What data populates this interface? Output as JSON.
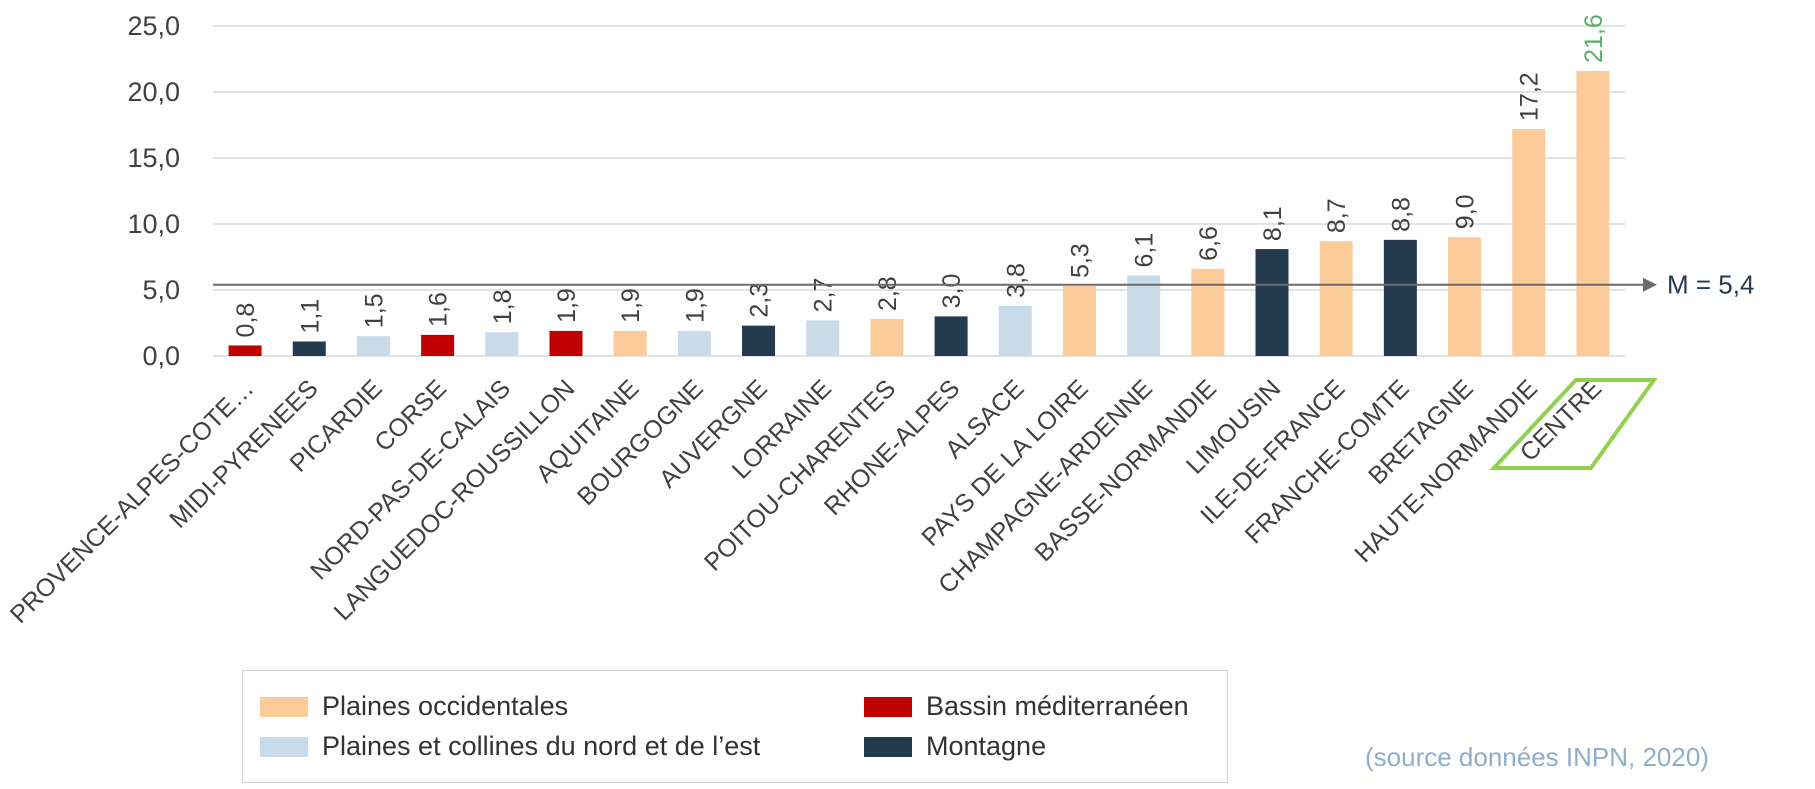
{
  "chart_data": {
    "type": "bar",
    "categories": [
      "PROVENCE-ALPES-COTE…",
      "MIDI-PYRENEES",
      "PICARDIE",
      "CORSE",
      "NORD-PAS-DE-CALAIS",
      "LANGUEDOC-ROUSSILLON",
      "AQUITAINE",
      "BOURGOGNE",
      "AUVERGNE",
      "LORRAINE",
      "POITOU-CHARENTES",
      "RHONE-ALPES",
      "ALSACE",
      "PAYS DE LA LOIRE",
      "CHAMPAGNE-ARDENNE",
      "BASSE-NORMANDIE",
      "LIMOUSIN",
      "ILE-DE-FRANCE",
      "FRANCHE-COMTE",
      "BRETAGNE",
      "HAUTE-NORMANDIE",
      "CENTRE"
    ],
    "values": [
      0.8,
      1.1,
      1.5,
      1.6,
      1.8,
      1.9,
      1.9,
      1.9,
      2.3,
      2.7,
      2.8,
      3.0,
      3.8,
      5.3,
      6.1,
      6.6,
      8.1,
      8.7,
      8.8,
      9.0,
      17.2,
      21.6
    ],
    "value_labels": [
      "0,8",
      "1,1",
      "1,5",
      "1,6",
      "1,8",
      "1,9",
      "1,9",
      "1,9",
      "2,3",
      "2,7",
      "2,8",
      "3,0",
      "3,8",
      "5,3",
      "6,1",
      "6,6",
      "8,1",
      "8,7",
      "8,8",
      "9,0",
      "17,2",
      "21,6"
    ],
    "groups": [
      "Bassin méditerranéen",
      "Montagne",
      "Plaines et collines du nord et de l’est",
      "Bassin méditerranéen",
      "Plaines et collines du nord et de l’est",
      "Bassin méditerranéen",
      "Plaines occidentales",
      "Plaines et collines du nord et de l’est",
      "Montagne",
      "Plaines et collines du nord et de l’est",
      "Plaines occidentales",
      "Montagne",
      "Plaines et collines du nord et de l’est",
      "Plaines occidentales",
      "Plaines et collines du nord et de l’est",
      "Plaines occidentales",
      "Montagne",
      "Plaines occidentales",
      "Montagne",
      "Plaines occidentales",
      "Plaines occidentales",
      "Plaines occidentales"
    ],
    "ylim": [
      0,
      25
    ],
    "yticks": [
      0,
      5,
      10,
      15,
      20,
      25
    ],
    "ytick_labels": [
      "0,0",
      "5,0",
      "10,0",
      "15,0",
      "20,0",
      "25,0"
    ],
    "grid": true,
    "reference_line": {
      "value": 5.4,
      "label": "M = 5,4"
    },
    "highlight": {
      "category": "CENTRE",
      "label_color": "#5aab6e",
      "frame_color": "#92d050"
    },
    "legend_position": "bottom-left",
    "xlabel": "",
    "ylabel": ""
  },
  "legend": [
    {
      "label": "Plaines occidentales",
      "color": "#fccb9a"
    },
    {
      "label": "Bassin méditerranéen",
      "color": "#c00000"
    },
    {
      "label": "Plaines et collines du nord et de l’est",
      "color": "#c9dae8"
    },
    {
      "label": "Montagne",
      "color": "#243a4f"
    }
  ],
  "source_note": "(source données  INPN, 2020)"
}
